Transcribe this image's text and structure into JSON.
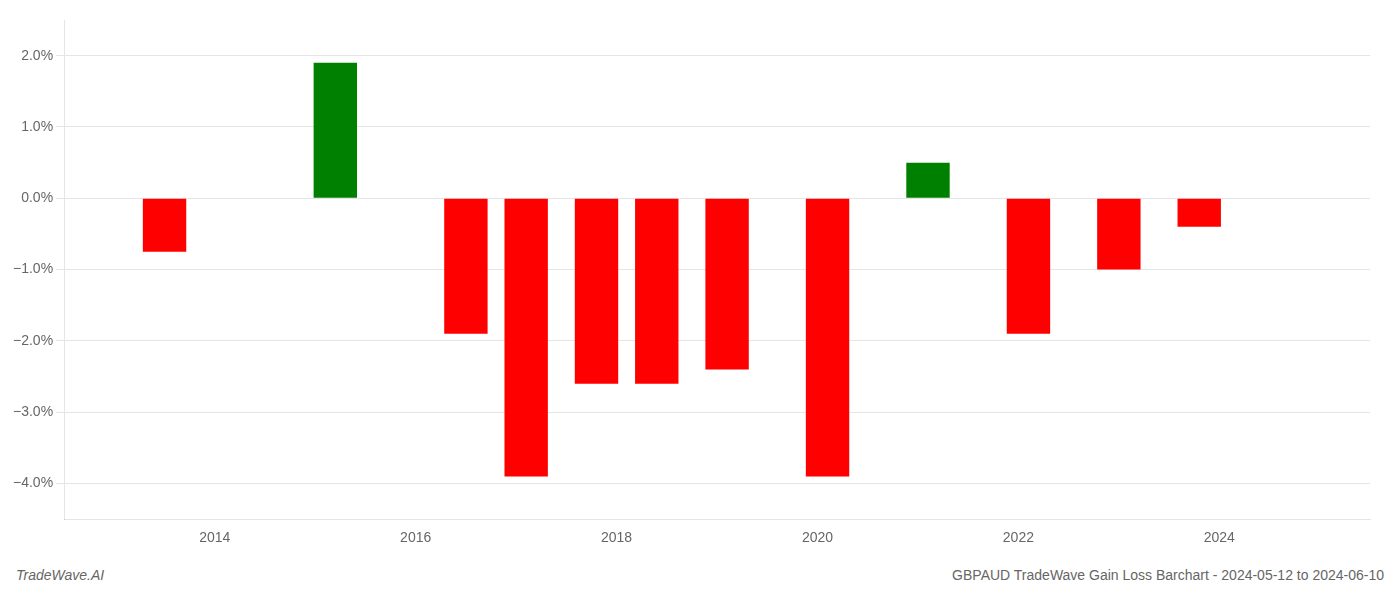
{
  "chart_data": {
    "type": "bar",
    "x": [
      2013.5,
      2015.2,
      2016.5,
      2017.1,
      2017.8,
      2018.4,
      2019.1,
      2020.1,
      2021.1,
      2022.1,
      2023.0,
      2023.8
    ],
    "values": [
      -0.0075,
      0.019,
      -0.019,
      -0.039,
      -0.026,
      -0.026,
      -0.024,
      -0.039,
      0.005,
      -0.019,
      -0.01,
      -0.004
    ],
    "colors": [
      "#ff0000",
      "#008000",
      "#ff0000",
      "#ff0000",
      "#ff0000",
      "#ff0000",
      "#ff0000",
      "#ff0000",
      "#008000",
      "#ff0000",
      "#ff0000",
      "#ff0000"
    ],
    "xlim": [
      2012.5,
      2025.5
    ],
    "xticks": [
      2014,
      2016,
      2018,
      2020,
      2022,
      2024
    ],
    "ylim": [
      -0.045,
      0.025
    ],
    "yticks": [
      {
        "value": -0.04,
        "label": "−4.0%"
      },
      {
        "value": -0.03,
        "label": "−3.0%"
      },
      {
        "value": -0.02,
        "label": "−2.0%"
      },
      {
        "value": -0.01,
        "label": "−1.0%"
      },
      {
        "value": 0.0,
        "label": "0.0%"
      },
      {
        "value": 0.01,
        "label": "1.0%"
      },
      {
        "value": 0.02,
        "label": "2.0%"
      }
    ],
    "grid": true,
    "annotations": [
      "TradeWave.AI",
      "GBPAUD TradeWave Gain Loss Barchart - 2024-05-12 to 2024-06-10"
    ]
  }
}
